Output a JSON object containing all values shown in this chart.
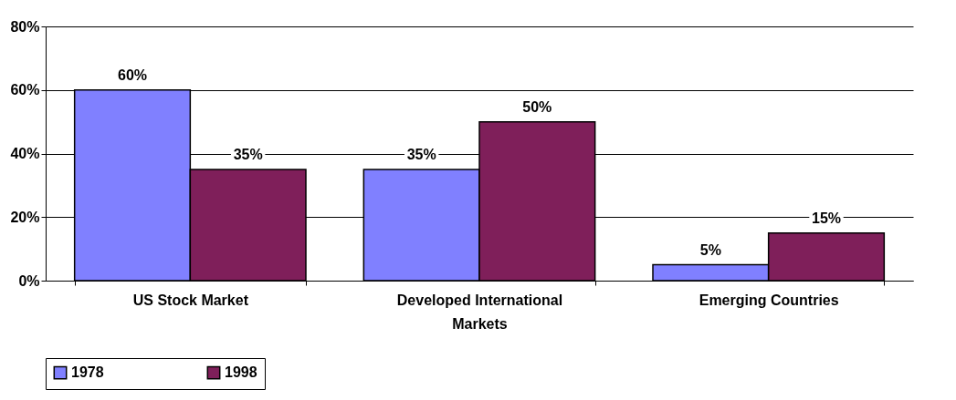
{
  "chart_data": {
    "type": "bar",
    "categories": [
      "US Stock Market",
      "Developed International Markets",
      "Emerging Countries"
    ],
    "series": [
      {
        "name": "1978",
        "color": "#8080ff",
        "values": [
          60,
          35,
          5
        ],
        "value_labels": [
          "60%",
          "35%",
          "5%"
        ]
      },
      {
        "name": "1998",
        "color": "#7f1f5a",
        "values": [
          35,
          50,
          15
        ],
        "value_labels": [
          "35%",
          "50%",
          "15%"
        ]
      }
    ],
    "ylim": [
      0,
      80
    ],
    "yticks": [
      {
        "value": 0,
        "label": "0%"
      },
      {
        "value": 20,
        "label": "20%"
      },
      {
        "value": 40,
        "label": "40%"
      },
      {
        "value": 60,
        "label": "60%"
      },
      {
        "value": 80,
        "label": "80%"
      }
    ],
    "grid": "y",
    "legend": "bottom"
  }
}
